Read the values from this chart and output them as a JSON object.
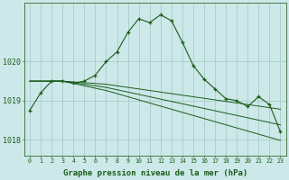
{
  "bg_color": "#cce8e8",
  "grid_color": "#aacccc",
  "line_color": "#1a5c1a",
  "xlabel": "Graphe pression niveau de la mer (hPa)",
  "xlabel_fontsize": 6.5,
  "ylabel_ticks": [
    1018,
    1019,
    1020
  ],
  "xlim": [
    -0.5,
    23.5
  ],
  "ylim": [
    1017.6,
    1021.5
  ],
  "xtick_labels": [
    "0",
    "1",
    "2",
    "3",
    "4",
    "5",
    "6",
    "7",
    "8",
    "9",
    "10",
    "11",
    "12",
    "13",
    "14",
    "15",
    "16",
    "17",
    "18",
    "19",
    "20",
    "21",
    "22",
    "23"
  ],
  "main_series": [
    1018.75,
    1019.2,
    1019.5,
    1019.5,
    1019.45,
    1019.5,
    1019.65,
    1020.0,
    1020.25,
    1020.75,
    1021.1,
    1021.0,
    1021.2,
    1021.05,
    1020.5,
    1019.9,
    1019.55,
    1019.3,
    1019.05,
    1019.0,
    1018.85,
    1019.1,
    1018.9,
    1018.2
  ],
  "flat_series": [
    [
      1019.5,
      1019.5,
      1019.5,
      1019.5,
      1019.48,
      1019.46,
      1019.44,
      1019.42,
      1019.38,
      1019.34,
      1019.3,
      1019.26,
      1019.22,
      1019.18,
      1019.14,
      1019.1,
      1019.06,
      1019.02,
      1018.98,
      1018.94,
      1018.9,
      1018.86,
      1018.82,
      1018.78
    ],
    [
      1019.5,
      1019.5,
      1019.5,
      1019.5,
      1019.46,
      1019.42,
      1019.38,
      1019.34,
      1019.28,
      1019.22,
      1019.16,
      1019.1,
      1019.04,
      1018.98,
      1018.92,
      1018.86,
      1018.8,
      1018.74,
      1018.68,
      1018.62,
      1018.56,
      1018.5,
      1018.44,
      1018.38
    ],
    [
      1019.5,
      1019.5,
      1019.5,
      1019.5,
      1019.44,
      1019.38,
      1019.32,
      1019.26,
      1019.18,
      1019.1,
      1019.02,
      1018.94,
      1018.86,
      1018.78,
      1018.7,
      1018.62,
      1018.54,
      1018.46,
      1018.38,
      1018.3,
      1018.22,
      1018.14,
      1018.06,
      1017.98
    ]
  ]
}
